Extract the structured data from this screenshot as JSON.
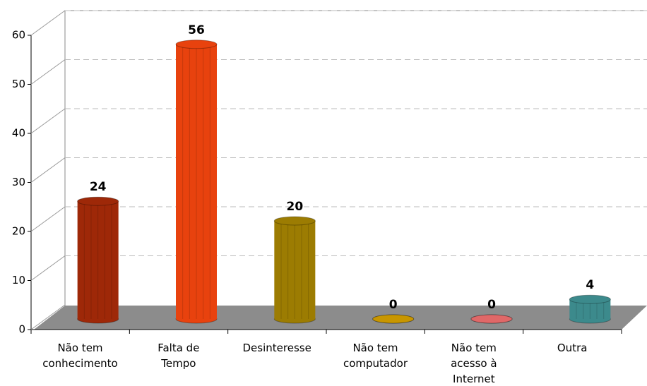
{
  "chart_data": {
    "type": "bar3d",
    "categories": [
      "Não tem\nconhecimento",
      "Falta de\nTempo",
      "Desinteresse",
      "Não tem\ncomputador",
      "Não tem\nacesso à\nInternet",
      "Outra"
    ],
    "values": [
      24,
      56,
      20,
      0,
      0,
      4
    ],
    "colors": [
      "#9e2808",
      "#e8420e",
      "#9c7c02",
      "#c89600",
      "#e06868",
      "#3c8a8c"
    ],
    "ylim": [
      0,
      60
    ],
    "yticks": [
      0,
      10,
      20,
      30,
      40,
      50,
      60
    ],
    "grid": true
  }
}
